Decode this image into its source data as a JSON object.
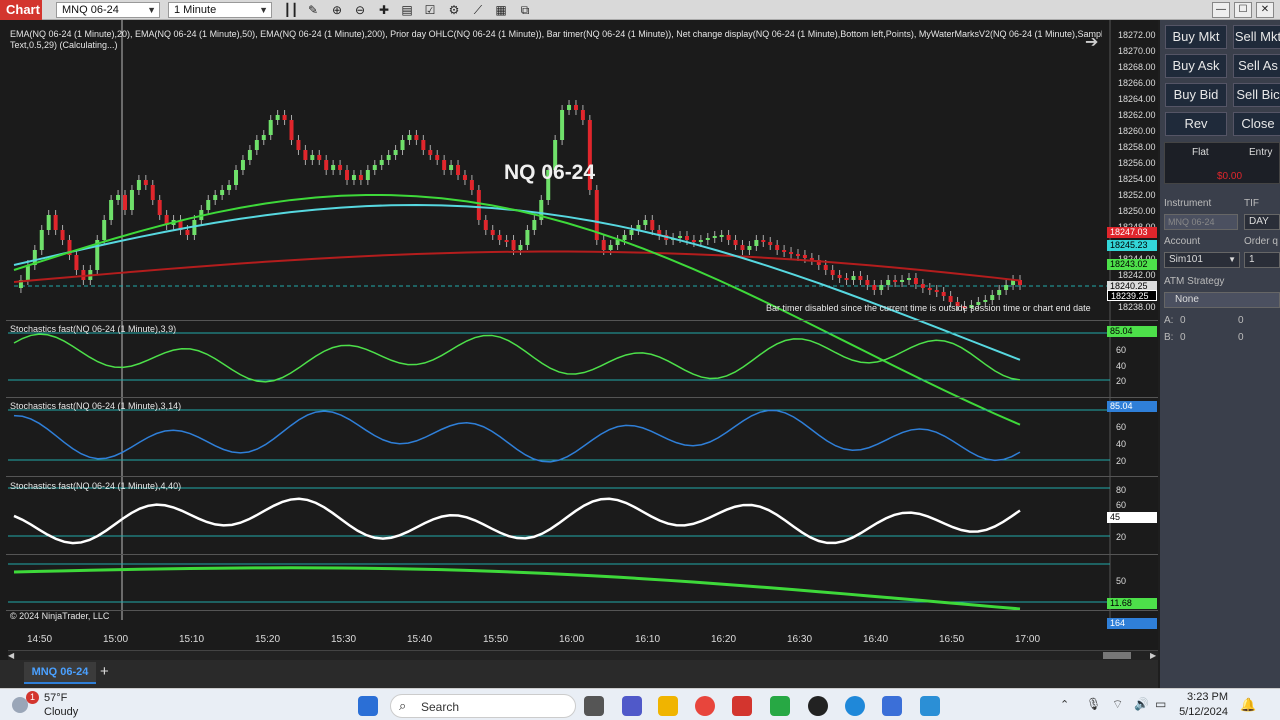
{
  "window": {
    "tab_label": "Chart",
    "instrument_select": "MNQ 06-24",
    "interval_select": "1 Minute",
    "minimize": "—",
    "maximize": "☐",
    "close": "✕"
  },
  "indicators_label": "EMA(NQ 06-24 (1 Minute),20), EMA(NQ 06-24 (1 Minute),50), EMA(NQ 06-24 (1 Minute),200), Prior day OHLC(NQ 06-24 (1 Minute)), Bar timer(NQ 06-24 (1 Minute)), Net change display(NQ 06-24 (1 Minute),Bottom left,Points), MyWaterMarksV2(NQ 06-24 (1 Minute),Sample",
  "indicators_label_2": "Text,0.5,29) (Calculating...)",
  "watermark": "NQ 06-24",
  "bar_timer_msg": "Bar timer disabled since the current time is outside session time or chart end date",
  "price_axis": [
    "18272.00",
    "18270.00",
    "18268.00",
    "18266.00",
    "18264.00",
    "18262.00",
    "18260.00",
    "18258.00",
    "18256.00",
    "18254.00",
    "18252.00",
    "18250.00",
    "18248.00",
    "18244.00",
    "18242.00",
    "18238.00"
  ],
  "price_flags": {
    "ema200": "18247.03",
    "ema50": "18245.23",
    "ema20": "18243.02",
    "prior": "18240.25",
    "last": "18239.25"
  },
  "panels": {
    "stoch1": {
      "label": "Stochastics fast(NQ 06-24 (1 Minute),3,9)",
      "flag": "85.04",
      "ticks": [
        "60",
        "40",
        "20"
      ]
    },
    "stoch2": {
      "label": "Stochastics fast(NQ 06-24 (1 Minute),3,14)",
      "flag": "85.04",
      "ticks": [
        "60",
        "40",
        "20"
      ]
    },
    "stoch3": {
      "label": "Stochastics fast(NQ 06-24 (1 Minute),4,40)",
      "flag": "45",
      "ticks": [
        "80",
        "60",
        "20"
      ]
    },
    "panel4": {
      "flag": "11.68",
      "ticks": [
        "50"
      ]
    },
    "volume": {
      "flag": "164"
    }
  },
  "copyright": "© 2024 NinjaTrader, LLC",
  "time_axis": [
    "14:50",
    "15:00",
    "15:10",
    "15:20",
    "15:30",
    "15:40",
    "15:50",
    "16:00",
    "16:10",
    "16:20",
    "16:30",
    "16:40",
    "16:50",
    "17:00"
  ],
  "bottom_tab": "MNQ 06-24",
  "add_tab": "+",
  "order_panel": {
    "buy_mkt": "Buy Mkt",
    "sell_mkt": "Sell Mkt",
    "buy_ask": "Buy Ask",
    "sell_ask": "Sell As",
    "buy_bid": "Buy Bid",
    "sell_bid": "Sell Bic",
    "rev": "Rev",
    "close": "Close",
    "flat": "Flat",
    "entry": "Entry",
    "pnl": "$0.00",
    "instrument_label": "Instrument",
    "instrument_value": "MNQ 06-24",
    "tif_label": "TIF",
    "tif_value": "DAY",
    "account_label": "Account",
    "account_value": "Sim101",
    "order_qty_label": "Order q",
    "order_qty_value": "1",
    "atm_label": "ATM Strategy",
    "atm_value": "None",
    "a_label": "A:",
    "a_val1": "0",
    "a_val2": "0",
    "b_label": "B:",
    "b_val1": "0",
    "b_val2": "0"
  },
  "taskbar": {
    "weather_temp": "57°F",
    "weather_desc": "Cloudy",
    "weather_badge": "1",
    "search_placeholder": "Search",
    "time": "3:23 PM",
    "date": "5/12/2024"
  }
}
